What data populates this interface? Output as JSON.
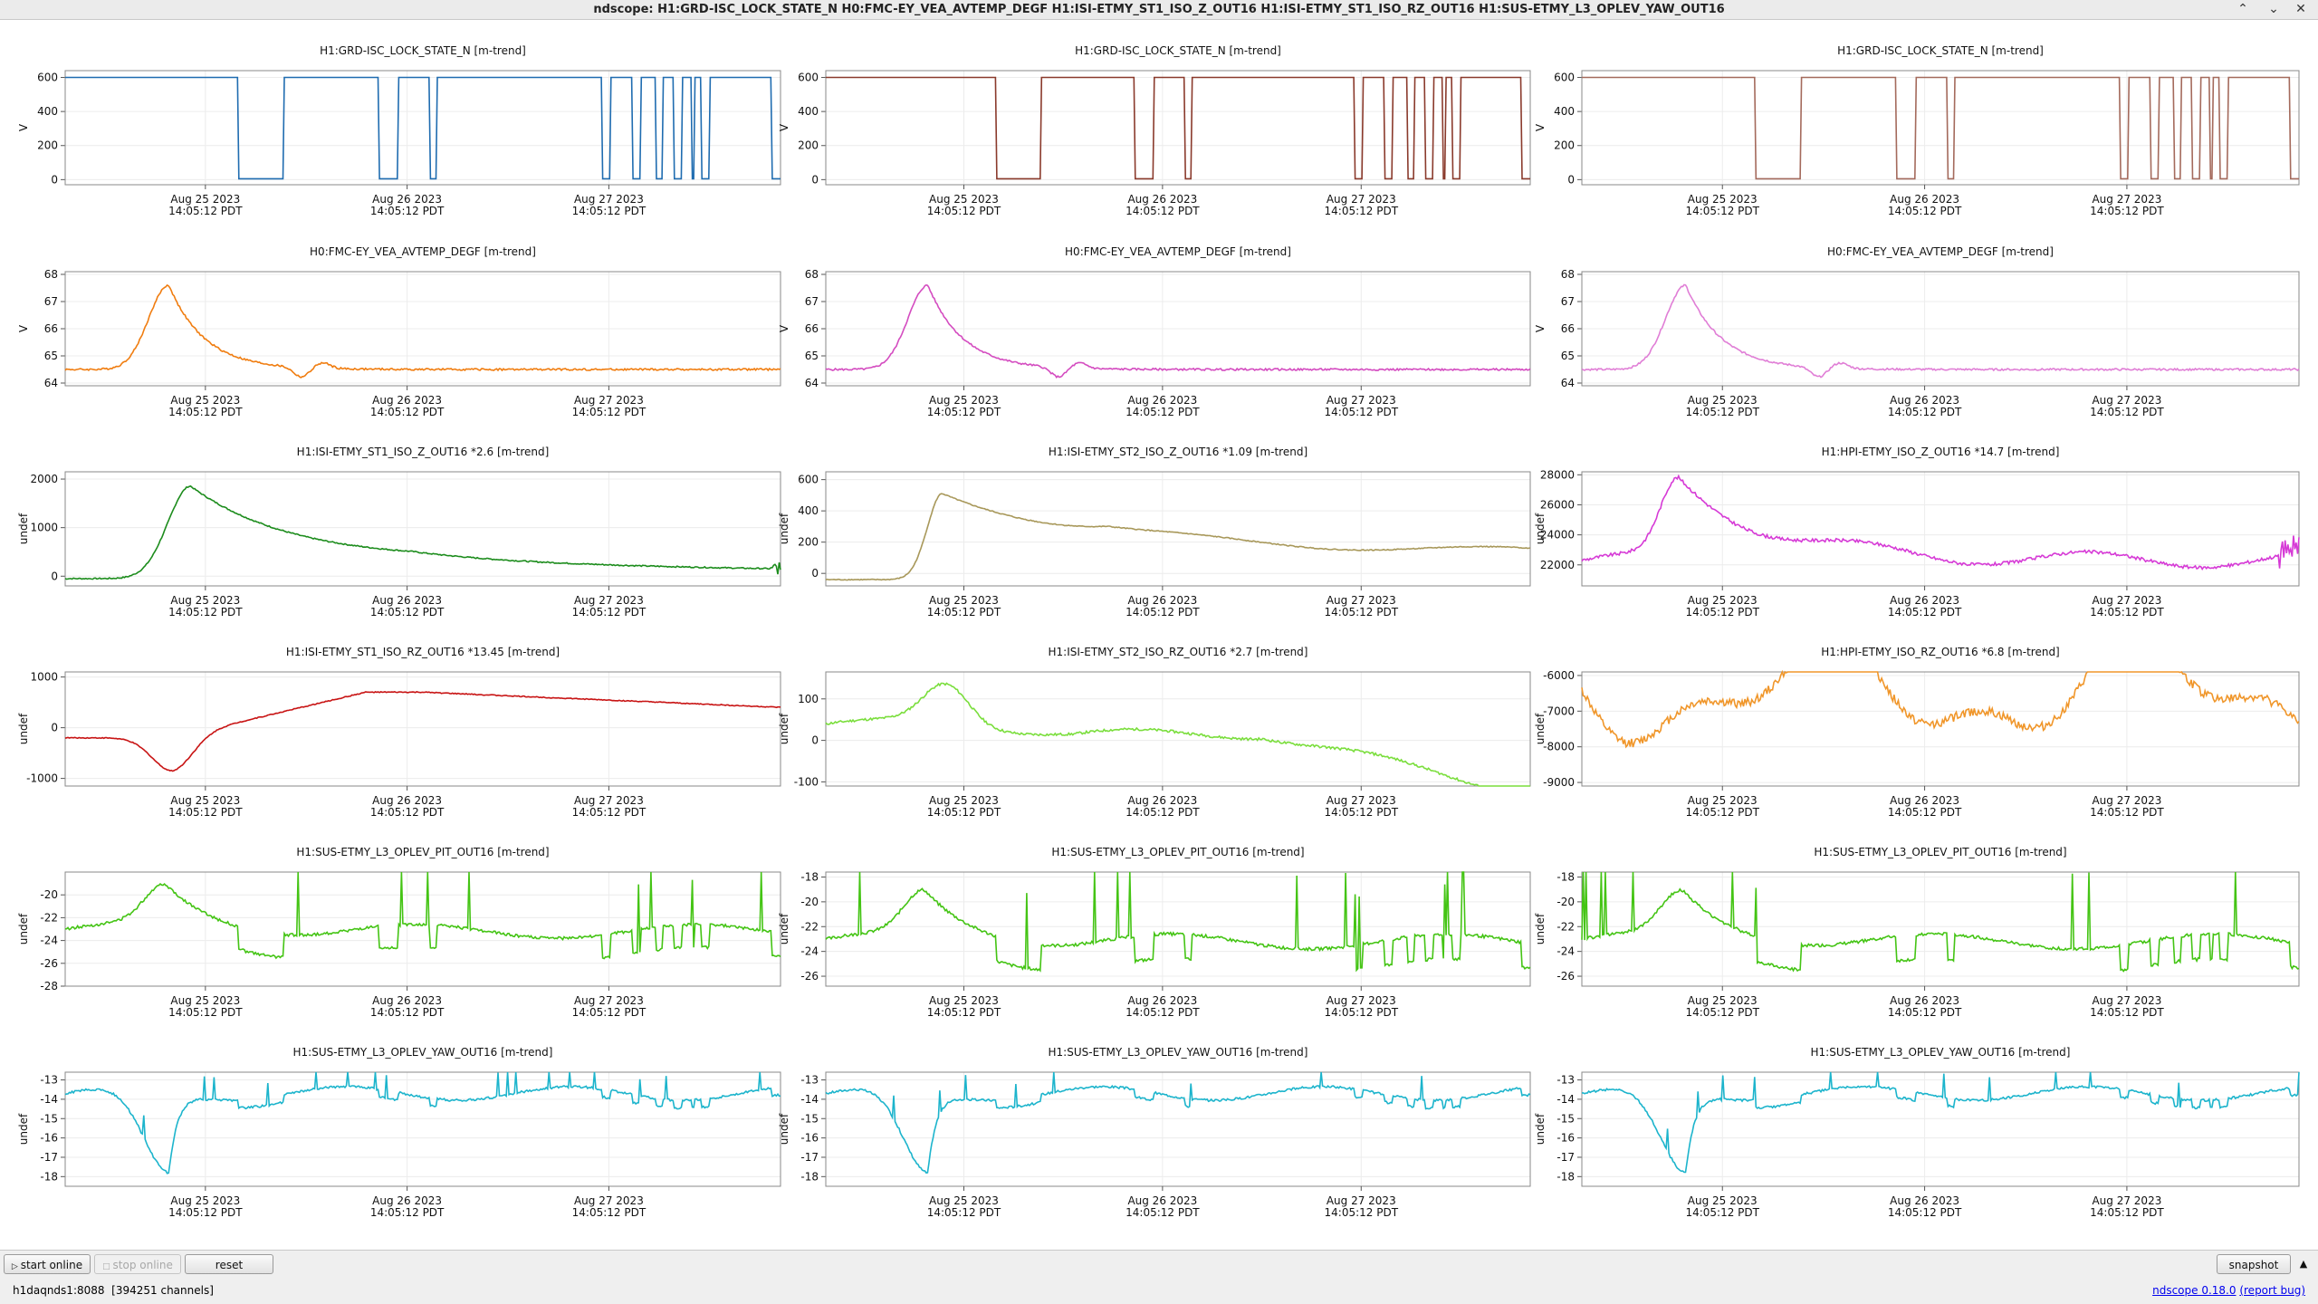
{
  "window": {
    "title": "ndscope: H1:GRD-ISC_LOCK_STATE_N H0:FMC-EY_VEA_AVTEMP_DEGF H1:ISI-ETMY_ST1_ISO_Z_OUT16 H1:ISI-ETMY_ST1_ISO_RZ_OUT16 H1:SUS-ETMY_L3_OPLEV_YAW_OUT16",
    "buttons": {
      "minimize": "⌃",
      "maximize": "⌄",
      "close": "✕"
    }
  },
  "time_axis": {
    "ticks": [
      {
        "date": "Aug 25 2023",
        "time": "14:05:12 PDT"
      },
      {
        "date": "Aug 26 2023",
        "time": "14:05:12 PDT"
      },
      {
        "date": "Aug 27 2023",
        "time": "14:05:12 PDT"
      }
    ],
    "tick_frac": [
      0.196,
      0.478,
      0.76
    ]
  },
  "colors": {
    "axis": "#555555",
    "grid": "#ececec",
    "link": "#0000ee"
  },
  "plots": [
    {
      "row": 0,
      "col": 0,
      "title": "H1:GRD-ISC_LOCK_STATE_N [m-trend]",
      "ylabel": "V",
      "color": "#1f6cb0",
      "ymin": -30,
      "ymax": 640,
      "ticks": [
        0,
        200,
        400,
        600
      ],
      "shape": "state",
      "seed": 1
    },
    {
      "row": 0,
      "col": 1,
      "title": "H1:GRD-ISC_LOCK_STATE_N [m-trend]",
      "ylabel": "V",
      "color": "#8a3a2c",
      "ymin": -30,
      "ymax": 640,
      "ticks": [
        0,
        200,
        400,
        600
      ],
      "shape": "state",
      "seed": 2
    },
    {
      "row": 0,
      "col": 2,
      "title": "H1:GRD-ISC_LOCK_STATE_N [m-trend]",
      "ylabel": "V",
      "color": "#a46a5c",
      "ymin": -30,
      "ymax": 640,
      "ticks": [
        0,
        200,
        400,
        600
      ],
      "shape": "state",
      "seed": 3
    },
    {
      "row": 1,
      "col": 0,
      "title": "H0:FMC-EY_VEA_AVTEMP_DEGF [m-trend]",
      "ylabel": "V",
      "color": "#f07d10",
      "ymin": 63.9,
      "ymax": 68.1,
      "ticks": [
        64,
        65,
        66,
        67,
        68
      ],
      "shape": "temp",
      "seed": 4
    },
    {
      "row": 1,
      "col": 1,
      "title": "H0:FMC-EY_VEA_AVTEMP_DEGF [m-trend]",
      "ylabel": "V",
      "color": "#d44cc0",
      "ymin": 63.9,
      "ymax": 68.1,
      "ticks": [
        64,
        65,
        66,
        67,
        68
      ],
      "shape": "temp",
      "seed": 5
    },
    {
      "row": 1,
      "col": 2,
      "title": "H0:FMC-EY_VEA_AVTEMP_DEGF [m-trend]",
      "ylabel": "V",
      "color": "#e07ed6",
      "ymin": 63.9,
      "ymax": 68.1,
      "ticks": [
        64,
        65,
        66,
        67,
        68
      ],
      "shape": "temp",
      "seed": 6
    },
    {
      "row": 2,
      "col": 0,
      "title": "H1:ISI-ETMY_ST1_ISO_Z_OUT16 *2.6 [m-trend]",
      "ylabel": "undef",
      "color": "#1c8c1c",
      "ymin": -200,
      "ymax": 2150,
      "ticks": [
        0,
        1000,
        2000
      ],
      "shape": "hump",
      "seed": 7
    },
    {
      "row": 2,
      "col": 1,
      "title": "H1:ISI-ETMY_ST2_ISO_Z_OUT16 *1.09 [m-trend]",
      "ylabel": "undef",
      "color": "#a8985a",
      "ymin": -80,
      "ymax": 650,
      "ticks": [
        0,
        200,
        400,
        600
      ],
      "shape": "hump2",
      "seed": 8
    },
    {
      "row": 2,
      "col": 2,
      "title": "H1:HPI-ETMY_ISO_Z_OUT16 *14.7 [m-trend]",
      "ylabel": "undef",
      "color": "#d63ad6",
      "ymin": 20600,
      "ymax": 28200,
      "ticks": [
        22000,
        24000,
        26000,
        28000
      ],
      "shape": "hump3",
      "seed": 9
    },
    {
      "row": 3,
      "col": 0,
      "title": "H1:ISI-ETMY_ST1_ISO_RZ_OUT16 *13.45 [m-trend]",
      "ylabel": "undef",
      "color": "#c81414",
      "ymin": -1150,
      "ymax": 1100,
      "ticks": [
        -1000,
        0,
        1000
      ],
      "shape": "rz",
      "seed": 10
    },
    {
      "row": 3,
      "col": 1,
      "title": "H1:ISI-ETMY_ST2_ISO_RZ_OUT16 *2.7 [m-trend]",
      "ylabel": "undef",
      "color": "#7ade3c",
      "ymin": -110,
      "ymax": 165,
      "ticks": [
        -100,
        0,
        100
      ],
      "shape": "rz2",
      "seed": 11
    },
    {
      "row": 3,
      "col": 2,
      "title": "H1:HPI-ETMY_ISO_RZ_OUT16 *6.8 [m-trend]",
      "ylabel": "undef",
      "color": "#f0962a",
      "ymin": -9100,
      "ymax": -5900,
      "ticks": [
        -9000,
        -8000,
        -7000,
        -6000
      ],
      "shape": "hpirz",
      "seed": 12
    },
    {
      "row": 4,
      "col": 0,
      "title": "H1:SUS-ETMY_L3_OPLEV_PIT_OUT16 [m-trend]",
      "ylabel": "undef",
      "color": "#44c414",
      "ymin": -28,
      "ymax": -18,
      "ticks": [
        -28,
        -26,
        -24,
        -22,
        -20
      ],
      "shape": "pit",
      "seed": 13
    },
    {
      "row": 4,
      "col": 1,
      "title": "H1:SUS-ETMY_L3_OPLEV_PIT_OUT16 [m-trend]",
      "ylabel": "undef",
      "color": "#44c414",
      "ymin": -26.8,
      "ymax": -17.6,
      "ticks": [
        -26,
        -24,
        -22,
        -20,
        -18
      ],
      "shape": "pit",
      "seed": 14
    },
    {
      "row": 4,
      "col": 2,
      "title": "H1:SUS-ETMY_L3_OPLEV_PIT_OUT16 [m-trend]",
      "ylabel": "undef",
      "color": "#44c414",
      "ymin": -26.8,
      "ymax": -17.6,
      "ticks": [
        -26,
        -24,
        -22,
        -20,
        -18
      ],
      "shape": "pit",
      "seed": 15
    },
    {
      "row": 5,
      "col": 0,
      "title": "H1:SUS-ETMY_L3_OPLEV_YAW_OUT16 [m-trend]",
      "ylabel": "undef",
      "color": "#1cb4cc",
      "ymin": -18.5,
      "ymax": -12.6,
      "ticks": [
        -18,
        -17,
        -16,
        -15,
        -14,
        -13
      ],
      "shape": "yaw",
      "seed": 16
    },
    {
      "row": 5,
      "col": 1,
      "title": "H1:SUS-ETMY_L3_OPLEV_YAW_OUT16 [m-trend]",
      "ylabel": "undef",
      "color": "#1cb4cc",
      "ymin": -18.5,
      "ymax": -12.6,
      "ticks": [
        -18,
        -17,
        -16,
        -15,
        -14,
        -13
      ],
      "shape": "yaw",
      "seed": 17
    },
    {
      "row": 5,
      "col": 2,
      "title": "H1:SUS-ETMY_L3_OPLEV_YAW_OUT16 [m-trend]",
      "ylabel": "undef",
      "color": "#1cb4cc",
      "ymin": -18.5,
      "ymax": -12.6,
      "ticks": [
        -18,
        -17,
        -16,
        -15,
        -14,
        -13
      ],
      "shape": "yaw",
      "seed": 18
    }
  ],
  "toolbar": {
    "start_online": "start online",
    "stop_online": "stop online",
    "reset": "reset",
    "snapshot": "snapshot",
    "collapse": "▲"
  },
  "status": {
    "server": "h1daqnds1:8088",
    "channels": "[394251 channels]",
    "version": "ndscope 0.18.0",
    "report_bug": "(report bug)"
  }
}
